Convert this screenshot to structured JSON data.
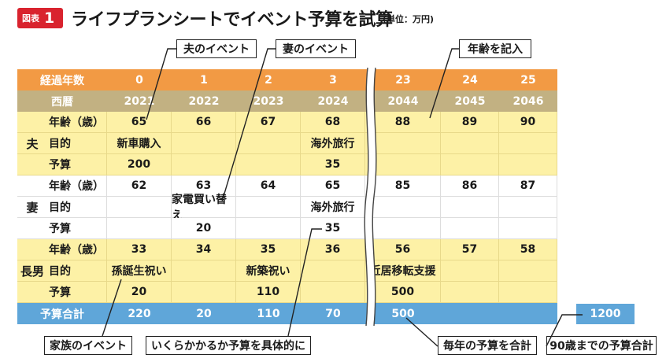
{
  "header": {
    "badge_label": "図表",
    "badge_number": "1",
    "title": "ライフプランシートでイベント予算を試算",
    "unit": "(単位：万円)"
  },
  "callouts": {
    "husband_events": "夫のイベント",
    "wife_events": "妻のイベント",
    "enter_age": "年齢を記入",
    "family_events": "家族のイベント",
    "specific_budget": "いくらかかるか予算を具体的に",
    "yearly_total": "毎年の予算を合計",
    "total_to_90": "90歳までの予算合計"
  },
  "table": {
    "elapsed_label": "経過年数",
    "elapsed": [
      "0",
      "1",
      "2",
      "3",
      "23",
      "24",
      "25"
    ],
    "year_label": "西暦",
    "years": [
      "2021",
      "2022",
      "2023",
      "2024",
      "2044",
      "2045",
      "2046"
    ],
    "groups": [
      {
        "name": "夫",
        "rows": [
          {
            "label": "年齢（歳）",
            "values": [
              "65",
              "66",
              "67",
              "68",
              "88",
              "89",
              "90"
            ]
          },
          {
            "label": "目的",
            "values": [
              "新車購入",
              "",
              "",
              "海外旅行",
              "",
              "",
              ""
            ]
          },
          {
            "label": "予算",
            "values": [
              "200",
              "",
              "",
              "35",
              "",
              "",
              ""
            ]
          }
        ]
      },
      {
        "name": "妻",
        "rows": [
          {
            "label": "年齢（歳）",
            "values": [
              "62",
              "63",
              "64",
              "65",
              "85",
              "86",
              "87"
            ]
          },
          {
            "label": "目的",
            "values": [
              "",
              "家電買い替え",
              "",
              "海外旅行",
              "",
              "",
              ""
            ]
          },
          {
            "label": "予算",
            "values": [
              "",
              "20",
              "",
              "35",
              "",
              "",
              ""
            ]
          }
        ]
      },
      {
        "name": "長男",
        "rows": [
          {
            "label": "年齢（歳）",
            "values": [
              "33",
              "34",
              "35",
              "36",
              "56",
              "57",
              "58"
            ]
          },
          {
            "label": "目的",
            "values": [
              "孫誕生祝い",
              "",
              "新築祝い",
              "",
              "近居移転支援",
              "",
              ""
            ]
          },
          {
            "label": "予算",
            "values": [
              "20",
              "",
              "110",
              "",
              "500",
              "",
              ""
            ]
          }
        ]
      }
    ],
    "total_label": "予算合計",
    "totals": [
      "220",
      "20",
      "110",
      "70",
      "500",
      "",
      ""
    ],
    "grand_total": "1200"
  },
  "colors": {
    "badge": "#d9232e",
    "header_orange": "#f29a44",
    "header_tan": "#c2b182",
    "row_yellow": "#fdf1a6",
    "total_blue": "#5fa6d9"
  }
}
